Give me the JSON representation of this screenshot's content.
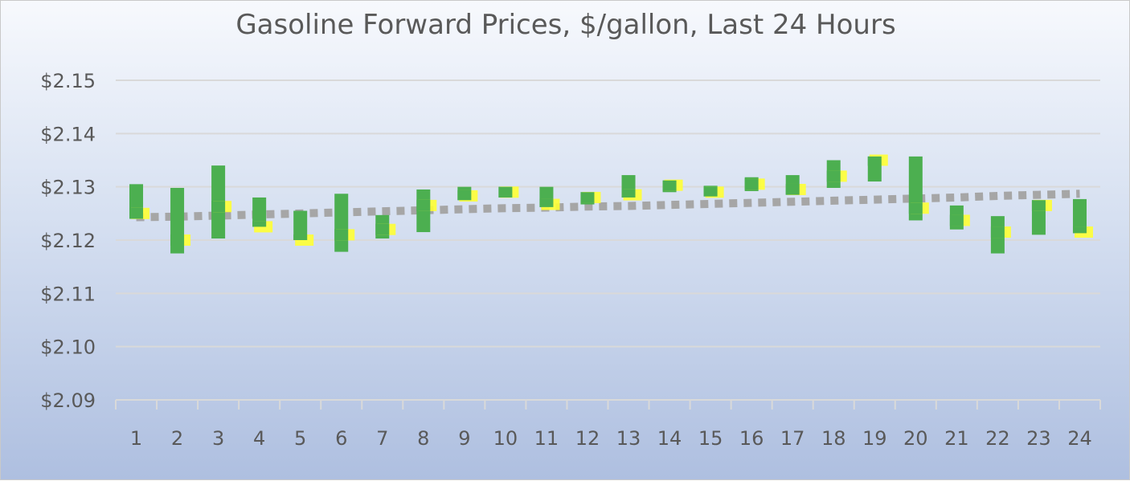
{
  "chart_data": {
    "type": "candlestick",
    "title": "Gasoline Forward Prices, $/gallon, Last 24 Hours",
    "xlabel": "",
    "ylabel": "",
    "ylim": [
      2.09,
      2.15
    ],
    "yticks": [
      2.09,
      2.1,
      2.11,
      2.12,
      2.13,
      2.14,
      2.15
    ],
    "ytick_labels": [
      "$2.09",
      "$2.10",
      "$2.11",
      "$2.12",
      "$2.13",
      "$2.14",
      "$2.15"
    ],
    "categories": [
      "1",
      "2",
      "3",
      "4",
      "5",
      "6",
      "7",
      "8",
      "9",
      "10",
      "11",
      "12",
      "13",
      "14",
      "15",
      "16",
      "17",
      "18",
      "19",
      "20",
      "21",
      "22",
      "23",
      "24"
    ],
    "grid": true,
    "legend": "none",
    "colors": {
      "bar": "#4caf50",
      "close_marker": "#ffff33",
      "trend": "#a6a6a6",
      "gridline": "#d9d9d9",
      "text": "#595959"
    },
    "series": [
      {
        "role": "high",
        "values": [
          2.1305,
          2.1298,
          2.134,
          2.128,
          2.1255,
          2.1287,
          2.1247,
          2.1295,
          2.13,
          2.13,
          2.13,
          2.129,
          2.1322,
          2.1312,
          2.1302,
          2.1318,
          2.1322,
          2.135,
          2.1357,
          2.1357,
          2.1265,
          2.1245,
          2.1275,
          2.1277
        ]
      },
      {
        "role": "low",
        "values": [
          2.124,
          2.1175,
          2.1203,
          2.1225,
          2.12,
          2.1178,
          2.1203,
          2.1215,
          2.1275,
          2.128,
          2.1262,
          2.1267,
          2.128,
          2.129,
          2.1282,
          2.1292,
          2.1285,
          2.1298,
          2.131,
          2.1237,
          2.122,
          2.1175,
          2.121,
          2.1213
        ]
      },
      {
        "role": "close",
        "values": [
          2.125,
          2.12,
          2.1263,
          2.1225,
          2.12,
          2.121,
          2.122,
          2.1265,
          2.1283,
          2.129,
          2.1267,
          2.128,
          2.1285,
          2.1303,
          2.129,
          2.1305,
          2.1295,
          2.132,
          2.135,
          2.126,
          2.1237,
          2.1215,
          2.1265,
          2.1215
        ]
      },
      {
        "role": "trend",
        "values": [
          2.1243,
          2.1244,
          2.1246,
          2.1248,
          2.125,
          2.1252,
          2.1254,
          2.1256,
          2.1258,
          2.126,
          2.1261,
          2.1263,
          2.1264,
          2.1266,
          2.1268,
          2.127,
          2.1272,
          2.1274,
          2.1276,
          2.1278,
          2.128,
          2.1283,
          2.1285,
          2.1287
        ]
      }
    ]
  }
}
